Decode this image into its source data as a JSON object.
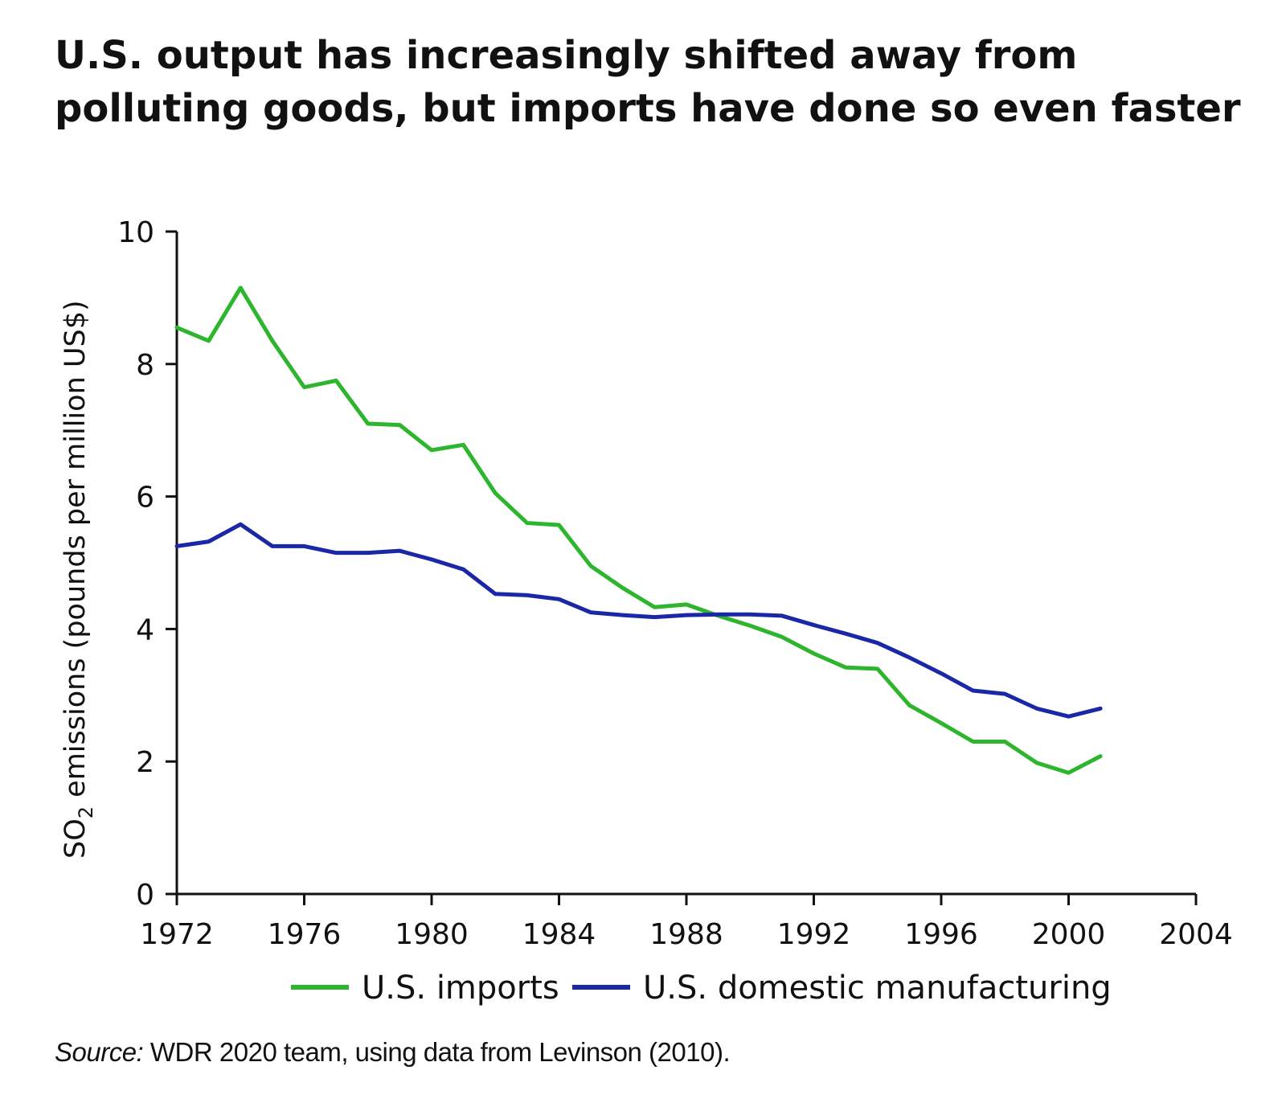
{
  "chart_data": {
    "type": "line",
    "title": "U.S. output has increasingly shifted away from polluting goods, but imports have done so even faster",
    "ylabel_main": "SO",
    "ylabel_sub": "2",
    "ylabel_rest": " emissions (pounds per million US$)",
    "xlabel": "",
    "xlim": [
      1972,
      2004
    ],
    "ylim": [
      0,
      10
    ],
    "xticks": [
      1972,
      1976,
      1980,
      1984,
      1988,
      1992,
      1996,
      2000,
      2004
    ],
    "yticks": [
      0,
      2,
      4,
      6,
      8,
      10
    ],
    "x": [
      1972,
      1973,
      1974,
      1975,
      1976,
      1977,
      1978,
      1979,
      1980,
      1981,
      1982,
      1983,
      1984,
      1985,
      1986,
      1987,
      1988,
      1989,
      1990,
      1991,
      1992,
      1993,
      1994,
      1995,
      1996,
      1997,
      1998,
      1999,
      2000,
      2001
    ],
    "series": [
      {
        "name": "U.S. imports",
        "color": "#2db52d",
        "values": [
          8.55,
          8.35,
          9.15,
          8.35,
          7.65,
          7.75,
          7.1,
          7.08,
          6.7,
          6.78,
          6.05,
          5.6,
          5.57,
          4.95,
          4.62,
          4.33,
          4.37,
          4.2,
          4.05,
          3.88,
          3.63,
          3.42,
          3.4,
          2.85,
          2.58,
          2.3,
          2.3,
          1.98,
          1.83,
          2.08
        ]
      },
      {
        "name": "U.S. domestic manufacturing",
        "color": "#1a27a6",
        "values": [
          5.25,
          5.32,
          5.58,
          5.25,
          5.25,
          5.15,
          5.15,
          5.18,
          5.05,
          4.9,
          4.53,
          4.51,
          4.45,
          4.25,
          4.21,
          4.18,
          4.21,
          4.22,
          4.22,
          4.2,
          4.06,
          3.93,
          3.79,
          3.57,
          3.33,
          3.07,
          3.02,
          2.8,
          2.68,
          2.8
        ]
      }
    ],
    "legend_position": "bottom",
    "grid": false
  },
  "title_text": "U.S. output has increasingly shifted away from polluting goods, but imports have done so even faster",
  "source_label": "Source:",
  "source_text": " WDR 2020 team, using data from Levinson (2010)."
}
